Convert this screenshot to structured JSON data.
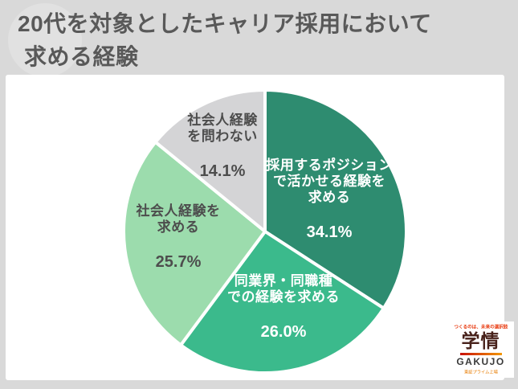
{
  "header": {
    "title_line1": "20代を対象としたキャリア採用において",
    "title_line2": "求める経験",
    "text_color": "#595959",
    "background_color": "#d9d9d9"
  },
  "chart_data": {
    "type": "pie",
    "title": "20代を対象としたキャリア採用において求める経験",
    "direction": "clockwise",
    "start_angle_deg": 0,
    "legend_position": "none",
    "categories": [
      "採用するポジションで活かせる経験を求める",
      "同業界・同職種での経験を求める",
      "社会人経験を求める",
      "社会人経験を問わない"
    ],
    "values": [
      34.1,
      26.0,
      25.7,
      14.1
    ],
    "slices": [
      {
        "name": "採用するポジションで活かせる経験を求める",
        "name_lines": [
          "採用するポジション",
          "で活かせる経験を",
          "求める"
        ],
        "value": 34.1,
        "pct": "34.1%",
        "color": "#2E8C70",
        "text_color": "#FFFFFF"
      },
      {
        "name": "同業界・同職種での経験を求める",
        "name_lines": [
          "同業界・同職種",
          "での経験を求める"
        ],
        "value": 26.0,
        "pct": "26.0%",
        "color": "#3BBA8C",
        "text_color": "#FFFFFF"
      },
      {
        "name": "社会人経験を求める",
        "name_lines": [
          "社会人経験を",
          "求める"
        ],
        "value": 25.7,
        "pct": "25.7%",
        "color": "#9CDCAD",
        "text_color": "#4D4D4D"
      },
      {
        "name": "社会人経験を問わない",
        "name_lines": [
          "社会人経験",
          "を問わない"
        ],
        "value": 14.1,
        "pct": "14.1%",
        "color": "#D4D4D6",
        "text_color": "#4D4D4D"
      }
    ],
    "slice_border_color": "#FFFFFF"
  },
  "logo": {
    "slogan": "つくるのは、未来の選択肢",
    "brand_jp": "学情",
    "brand_en": "GAKUJO",
    "listing": "東証プライム上場",
    "slogan_color": "#E8380D",
    "brand_jp_color": "#47211A",
    "listing_color": "#E87C00",
    "bar_gradient_left": "#C81000",
    "bar_gradient_right": "#F39800"
  }
}
